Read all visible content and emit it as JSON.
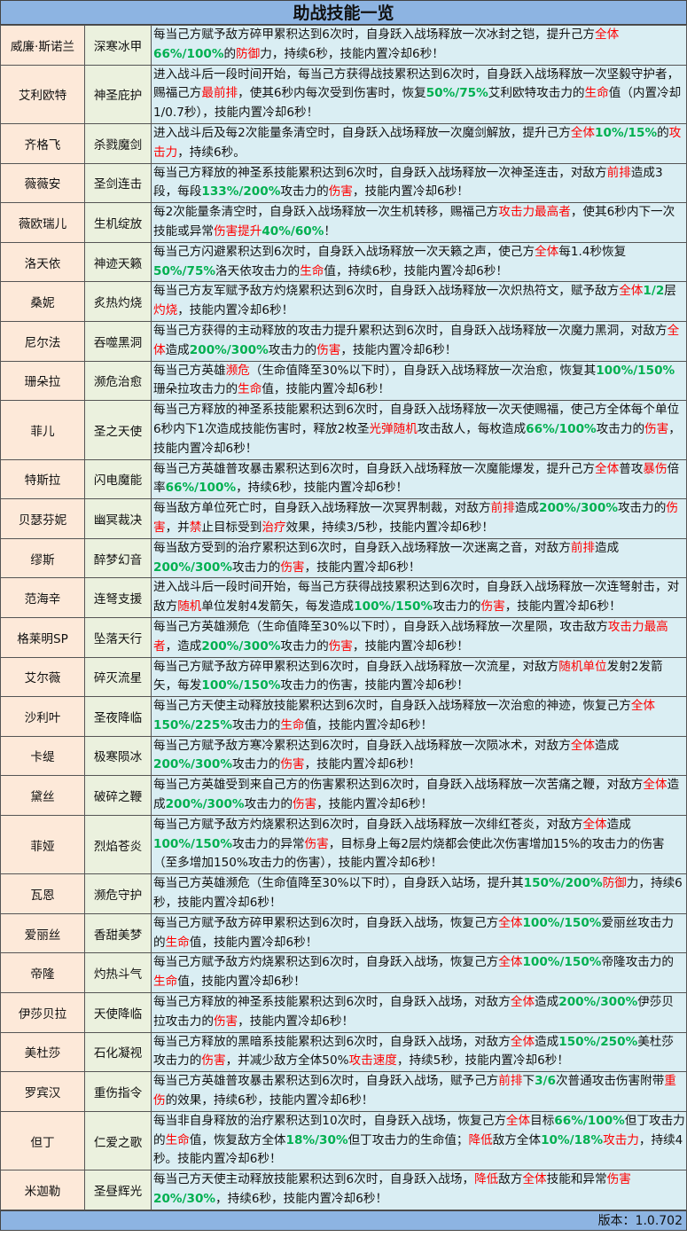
{
  "title": "助战技能一览",
  "colors": {
    "header_bg": "#8db4e2",
    "name_bg": "#fde9d9",
    "skill_bg": "#ebf1de",
    "desc_bg": "#daeef3",
    "red": "#ff0000",
    "green": "#00b050"
  },
  "rows": [
    {
      "name": "威廉·斯诺兰",
      "skill": "深寒冰甲",
      "desc": [
        [
          "每当己方赋予敌方碎甲累积达到6次时，自身跃入战场释放一次冰封之铠，提升己方",
          ""
        ],
        [
          "全体",
          "red"
        ],
        [
          "66%/100%",
          "green"
        ],
        [
          "的",
          ""
        ],
        [
          "防御",
          "red"
        ],
        [
          "力，持续6秒，技能内置冷却6秒！",
          ""
        ]
      ]
    },
    {
      "name": "艾利欧特",
      "skill": "神圣庇护",
      "desc": [
        [
          "进入战斗后一段时间开始，每当己方获得战技累积达到6次时，自身跃入战场释放一次坚毅守护者，赐福己方",
          ""
        ],
        [
          "最前排",
          "red"
        ],
        [
          "，使其6秒内每次受到伤害时，恢复",
          ""
        ],
        [
          "50%/75%",
          "green"
        ],
        [
          "艾利欧特攻击力的",
          ""
        ],
        [
          "生命",
          "red"
        ],
        [
          "值（内置冷却1/0.7秒），技能内置冷却6秒！",
          ""
        ]
      ]
    },
    {
      "name": "齐格飞",
      "skill": "杀戮魔剑",
      "desc": [
        [
          "进入战斗后及每2次能量条清空时，自身跃入战场释放一次魔剑解放，提升己方",
          ""
        ],
        [
          "全体",
          "red"
        ],
        [
          "10%/15%",
          "green"
        ],
        [
          "的",
          ""
        ],
        [
          "攻击力",
          "red"
        ],
        [
          "，持续6秒。",
          ""
        ]
      ]
    },
    {
      "name": "薇薇安",
      "skill": "圣剑连击",
      "desc": [
        [
          "每当己方释放的神圣系技能累积达到6次时，自身跃入战场释放一次神圣连击，对敌方",
          ""
        ],
        [
          "前排",
          "red"
        ],
        [
          "造成3段，每段",
          ""
        ],
        [
          "133%/200%",
          "green"
        ],
        [
          "攻击力的",
          ""
        ],
        [
          "伤害",
          "red"
        ],
        [
          "，技能内置冷却6秒！",
          ""
        ]
      ]
    },
    {
      "name": "薇欧瑞儿",
      "skill": "生机绽放",
      "desc": [
        [
          "每2次能量条清空时，自身跃入战场释放一次生机转移，赐福己方",
          ""
        ],
        [
          "攻击力最高者",
          "red"
        ],
        [
          "，使其6秒内下一次技能或异常",
          ""
        ],
        [
          "伤害提升",
          "red"
        ],
        [
          "40%/60%",
          "green"
        ],
        [
          "！",
          ""
        ]
      ]
    },
    {
      "name": "洛天依",
      "skill": "神迹天籁",
      "desc": [
        [
          "每当己方闪避累积达到6次时，自身跃入战场释放一次天籁之声，使己方",
          ""
        ],
        [
          "全体",
          "red"
        ],
        [
          "每1.4秒恢复",
          ""
        ],
        [
          "50%/75%",
          "green"
        ],
        [
          "洛天依攻击力的",
          ""
        ],
        [
          "生命",
          "red"
        ],
        [
          "值，持续6秒，技能内置冷却6秒！",
          ""
        ]
      ]
    },
    {
      "name": "桑妮",
      "skill": "炙热灼烧",
      "desc": [
        [
          "每当己方友军赋予敌方灼烧累积达到6次时，自身跃入战场释放一次炽热符文，赋予敌方",
          ""
        ],
        [
          "全体",
          "red"
        ],
        [
          "1/2",
          "green"
        ],
        [
          "层",
          ""
        ],
        [
          "灼烧",
          "red"
        ],
        [
          "，技能内置冷却6秒！",
          ""
        ]
      ]
    },
    {
      "name": "尼尔法",
      "skill": "吞噬黑洞",
      "desc": [
        [
          "每当己方获得的主动释放的攻击力提升累积达到6次时，自身跃入战场释放一次魔力黑洞，对敌方",
          ""
        ],
        [
          "全体",
          "red"
        ],
        [
          "造成",
          ""
        ],
        [
          "200%/300%",
          "green"
        ],
        [
          "攻击力的",
          ""
        ],
        [
          "伤害",
          "red"
        ],
        [
          "，技能内置冷却6秒！",
          ""
        ]
      ]
    },
    {
      "name": "珊朵拉",
      "skill": "濒危治愈",
      "desc": [
        [
          "每当己方英雄",
          ""
        ],
        [
          "濒危",
          "red"
        ],
        [
          "（生命值降至30%以下时），自身跃入战场释放一次治愈，恢复其",
          ""
        ],
        [
          "100%/150%",
          "green"
        ],
        [
          "珊朵拉攻击力的",
          ""
        ],
        [
          "生命",
          "red"
        ],
        [
          "值，技能内置冷却6秒！",
          ""
        ]
      ]
    },
    {
      "name": "菲儿",
      "skill": "圣之天使",
      "desc": [
        [
          "每当己方释放的神圣系技能累积达到6次时，自身跃入战场释放一次天使赐福，使己方全体每个单位6秒内下1次造成技能伤害时，释放2枚圣",
          ""
        ],
        [
          "光弹随机",
          "red"
        ],
        [
          "攻击敌人，每枚造成",
          ""
        ],
        [
          "66%/100%",
          "green"
        ],
        [
          "攻击力的",
          ""
        ],
        [
          "伤害",
          "red"
        ],
        [
          "，技能内置冷却6秒！",
          ""
        ]
      ]
    },
    {
      "name": "特斯拉",
      "skill": "闪电魔能",
      "desc": [
        [
          "每当己方英雄普攻暴击累积达到6次时，自身跃入战场释放一次魔能爆发，提升己方",
          ""
        ],
        [
          "全体",
          "red"
        ],
        [
          "普攻",
          ""
        ],
        [
          "暴伤",
          "red"
        ],
        [
          "倍率",
          ""
        ],
        [
          "66%/100%",
          "green"
        ],
        [
          "，持续6秒，技能内置冷却6秒！",
          ""
        ]
      ]
    },
    {
      "name": "贝瑟芬妮",
      "skill": "幽冥裁决",
      "desc": [
        [
          "每当敌方单位死亡时，自身跃入战场释放一次冥界制裁，对敌方",
          ""
        ],
        [
          "前排",
          "red"
        ],
        [
          "造成",
          ""
        ],
        [
          "200%/300%",
          "green"
        ],
        [
          "攻击力的",
          ""
        ],
        [
          "伤害",
          "red"
        ],
        [
          "，并",
          ""
        ],
        [
          "禁",
          "red"
        ],
        [
          "止目标受到",
          ""
        ],
        [
          "治疗",
          "red"
        ],
        [
          "效果，持续3/5秒，技能内置冷却6秒！",
          ""
        ]
      ]
    },
    {
      "name": "缪斯",
      "skill": "醉梦幻音",
      "desc": [
        [
          "每当敌方受到的治疗累积达到6次时，自身跃入战场释放一次迷离之音，对敌方",
          ""
        ],
        [
          "前排",
          "red"
        ],
        [
          "造成",
          ""
        ],
        [
          "200%/300%",
          "green"
        ],
        [
          "攻击力的",
          ""
        ],
        [
          "伤害",
          "red"
        ],
        [
          "，技能内置冷却6秒！",
          ""
        ]
      ]
    },
    {
      "name": "范海辛",
      "skill": "连弩支援",
      "desc": [
        [
          "进入战斗后一段时间开始，每当己方获得战技累积达到6次时，自身跃入战场释放一次连弩射击，对敌方",
          ""
        ],
        [
          "随机",
          "red"
        ],
        [
          "单位发射4发箭矢，每发造成",
          ""
        ],
        [
          "100%/150%",
          "green"
        ],
        [
          "攻击力的",
          ""
        ],
        [
          "伤害",
          "red"
        ],
        [
          "，技能内置冷却6秒！",
          ""
        ]
      ]
    },
    {
      "name": "格莱明SP",
      "skill": "坠落天行",
      "desc": [
        [
          "每当己方英雄濒危（生命值降至30%以下时），自身跃入战场释放一次星陨，攻击敌方",
          ""
        ],
        [
          "攻击力最高者",
          "red"
        ],
        [
          "，造成",
          ""
        ],
        [
          "200%/300%",
          "green"
        ],
        [
          "攻击力的",
          ""
        ],
        [
          "伤害",
          "red"
        ],
        [
          "，技能内置冷却6秒！",
          ""
        ]
      ]
    },
    {
      "name": "艾尔薇",
      "skill": "碎灭流星",
      "desc": [
        [
          "每当己方赋予敌方碎甲累积达到6次时，自身跃入战场释放一次流星，对敌方",
          ""
        ],
        [
          "随机单位",
          "red"
        ],
        [
          "发射2发箭矢，每发",
          ""
        ],
        [
          "100%/150%",
          "green"
        ],
        [
          "攻击力的伤害，技能内置冷却6秒！",
          ""
        ]
      ]
    },
    {
      "name": "沙利叶",
      "skill": "圣夜降临",
      "desc": [
        [
          "每当己方天使主动释放技能累积达到6次时，自身跃入战场释放一次治愈的神迹，恢复己方",
          ""
        ],
        [
          "全体",
          "red"
        ],
        [
          "150%/225%",
          "green"
        ],
        [
          "攻击力的",
          ""
        ],
        [
          "生命",
          "red"
        ],
        [
          "值，技能内置冷却6秒！",
          ""
        ]
      ]
    },
    {
      "name": "卡缇",
      "skill": "极寒陨冰",
      "desc": [
        [
          "每当己方赋予敌方寒冷累积达到6次时，自身跃入战场释放一次陨冰术，对敌方",
          ""
        ],
        [
          "全体",
          "red"
        ],
        [
          "造成",
          ""
        ],
        [
          "200%/300%",
          "green"
        ],
        [
          "攻击力的",
          ""
        ],
        [
          "伤害",
          "red"
        ],
        [
          "，技能内置冷却6秒！",
          ""
        ]
      ]
    },
    {
      "name": "黛丝",
      "skill": "破碎之鞭",
      "desc": [
        [
          "每当己方英雄受到来自己方的伤害累积达到6次时，自身跃入战场释放一次苦痛之鞭，对敌方",
          ""
        ],
        [
          "全体",
          "red"
        ],
        [
          "造成",
          ""
        ],
        [
          "200%/300%",
          "green"
        ],
        [
          "攻击力的",
          ""
        ],
        [
          "伤害",
          "red"
        ],
        [
          "，技能内置冷却6秒！",
          ""
        ]
      ]
    },
    {
      "name": "菲娅",
      "skill": "烈焰苍炎",
      "desc": [
        [
          "每当己方赋予敌方灼烧累积达到6次时，自身跃入战场释放一次绯红苍炎，对敌方",
          ""
        ],
        [
          "全体",
          "red"
        ],
        [
          "造成",
          ""
        ],
        [
          "100%/150%",
          "green"
        ],
        [
          "攻击力的异常",
          ""
        ],
        [
          "伤害",
          "red"
        ],
        [
          "，目标身上每2层灼烧都会使此次伤害增加15%的攻击力的伤害（至多增加150%攻击力的伤害），技能内置冷却6秒！",
          ""
        ]
      ]
    },
    {
      "name": "瓦恩",
      "skill": "濒危守护",
      "desc": [
        [
          "每当己方英雄濒危（生命值降至30%以下时），自身跃入站场，提升其",
          ""
        ],
        [
          "150%/200%",
          "green"
        ],
        [
          "防御",
          "red"
        ],
        [
          "力，持续6秒，技能内置冷却6秒！",
          ""
        ]
      ]
    },
    {
      "name": "爱丽丝",
      "skill": "香甜美梦",
      "desc": [
        [
          "每当己方赋予敌方碎甲累积达到6次时，自身跃入战场，恢复己方",
          ""
        ],
        [
          "全体",
          "red"
        ],
        [
          "100%/150%",
          "green"
        ],
        [
          "爱丽丝攻击力的",
          ""
        ],
        [
          "生命",
          "red"
        ],
        [
          "值，技能内置冷却6秒！",
          ""
        ]
      ]
    },
    {
      "name": "帝隆",
      "skill": "灼热斗气",
      "desc": [
        [
          "每当己方赋予敌方灼烧累积达到6次时，自身跃入战场，恢复己方",
          ""
        ],
        [
          "全体",
          "red"
        ],
        [
          "100%/150%",
          "green"
        ],
        [
          "帝隆攻击力的",
          ""
        ],
        [
          "生命",
          "red"
        ],
        [
          "值，技能内置冷却6秒！",
          ""
        ]
      ]
    },
    {
      "name": "伊莎贝拉",
      "skill": "天使降临",
      "desc": [
        [
          "每当己方释放的神圣系技能累积达到6次时，自身跃入战场，对敌方",
          ""
        ],
        [
          "全体",
          "red"
        ],
        [
          "造成",
          ""
        ],
        [
          "200%/300%",
          "green"
        ],
        [
          "伊莎贝拉攻击力的",
          ""
        ],
        [
          "伤害",
          "red"
        ],
        [
          "，技能内置冷却6秒！",
          ""
        ]
      ]
    },
    {
      "name": "美杜莎",
      "skill": "石化凝视",
      "desc": [
        [
          "每当己方释放的黑暗系技能累积达到6次时，自身跃入战场，对敌方",
          ""
        ],
        [
          "全体",
          "red"
        ],
        [
          "造成",
          ""
        ],
        [
          "150%/250%",
          "green"
        ],
        [
          "美杜莎攻击力的",
          ""
        ],
        [
          "伤害",
          "red"
        ],
        [
          "，并减少敌方全体50%",
          ""
        ],
        [
          "攻击速度",
          "red"
        ],
        [
          "，持续5秒，技能内置冷却6秒！",
          ""
        ]
      ]
    },
    {
      "name": "罗宾汉",
      "skill": "重伤指令",
      "desc": [
        [
          "每当己方英雄普攻暴击累积达到6次时，自身跃入战场，赋予己方",
          ""
        ],
        [
          "前排",
          "red"
        ],
        [
          "下",
          ""
        ],
        [
          "3/6",
          "green"
        ],
        [
          "次普通攻击伤害附带",
          ""
        ],
        [
          "重伤",
          "red"
        ],
        [
          "的效果，持续6秒，技能内置冷却6秒！",
          ""
        ]
      ]
    },
    {
      "name": "但丁",
      "skill": "仁爱之歌",
      "desc": [
        [
          "每当非自身释放的治疗累积达到10次时，自身跃入战场，恢复己方",
          ""
        ],
        [
          "全体",
          "red"
        ],
        [
          "目标",
          ""
        ],
        [
          "66%/100%",
          "green"
        ],
        [
          "但丁攻击力的",
          ""
        ],
        [
          "生命",
          "red"
        ],
        [
          "值，恢复敌方全体",
          ""
        ],
        [
          "18%/30%",
          "green"
        ],
        [
          "但丁攻击力的生命值；",
          ""
        ],
        [
          "降低",
          "red"
        ],
        [
          "敌方全体",
          ""
        ],
        [
          "10%/18%",
          "green"
        ],
        [
          "攻击力",
          "red"
        ],
        [
          "，持续4秒。技能内置冷却6秒！",
          ""
        ]
      ]
    },
    {
      "name": "米迦勒",
      "skill": "圣昼辉光",
      "desc": [
        [
          "每当己方天使主动释放技能累积达到6次时，自身跃入战场，",
          ""
        ],
        [
          "降低",
          "red"
        ],
        [
          "敌方",
          ""
        ],
        [
          "全体",
          "red"
        ],
        [
          "技能和异常",
          ""
        ],
        [
          "伤害",
          "red"
        ],
        [
          "20%/30%",
          "green"
        ],
        [
          "，持续6秒，技能内置冷却6秒！",
          ""
        ]
      ]
    }
  ],
  "footer": {
    "version": "版本：1.0.702"
  }
}
